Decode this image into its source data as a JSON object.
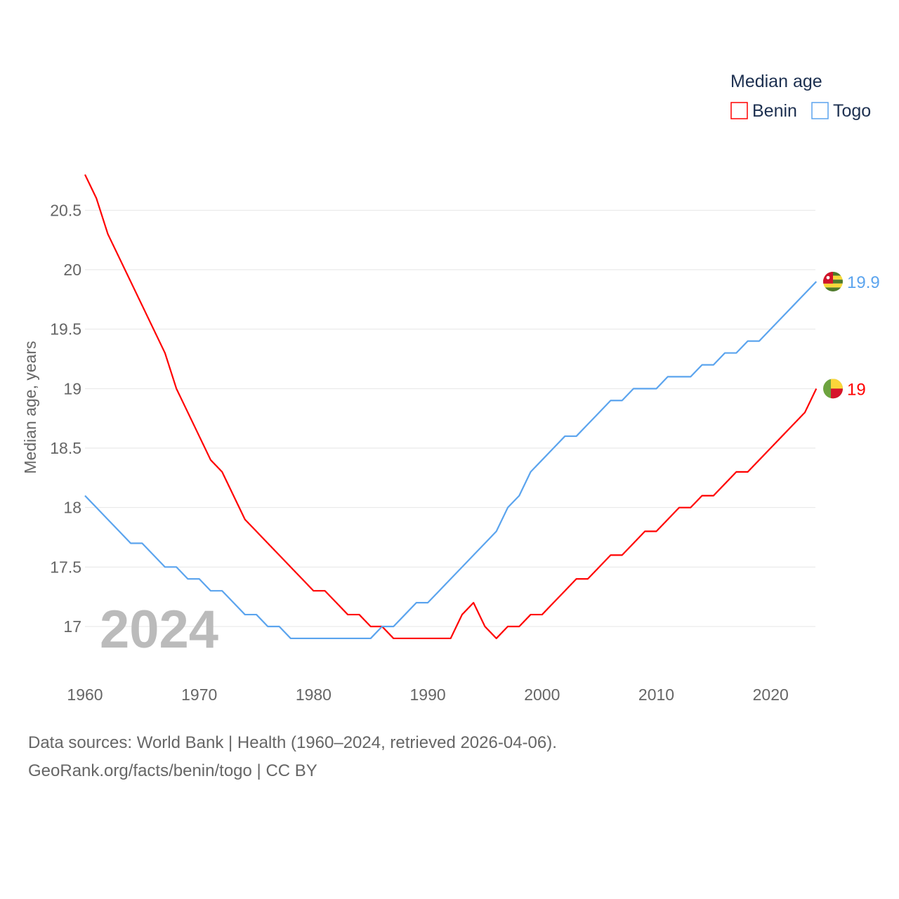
{
  "chart_data": {
    "type": "line",
    "title": "",
    "xlabel": "",
    "ylabel": "Median age, years",
    "xlim": [
      1960,
      2024
    ],
    "ylim": [
      16.65,
      20.85
    ],
    "grid": true,
    "legend": {
      "title": "Median age",
      "placement": "top-right"
    },
    "x_ticks": [
      "1960",
      "1970",
      "1980",
      "1990",
      "2000",
      "2010",
      "2020"
    ],
    "y_ticks": [
      "17",
      "17.5",
      "18",
      "18.5",
      "19",
      "19.5",
      "20",
      "20.5"
    ],
    "year_watermark": "2024",
    "x": [
      1960,
      1961,
      1962,
      1963,
      1964,
      1965,
      1966,
      1967,
      1968,
      1969,
      1970,
      1971,
      1972,
      1973,
      1974,
      1975,
      1976,
      1977,
      1978,
      1979,
      1980,
      1981,
      1982,
      1983,
      1984,
      1985,
      1986,
      1987,
      1988,
      1989,
      1990,
      1991,
      1992,
      1993,
      1994,
      1995,
      1996,
      1997,
      1998,
      1999,
      2000,
      2001,
      2002,
      2003,
      2004,
      2005,
      2006,
      2007,
      2008,
      2009,
      2010,
      2011,
      2012,
      2013,
      2014,
      2015,
      2016,
      2017,
      2018,
      2019,
      2020,
      2021,
      2022,
      2023,
      2024
    ],
    "series": [
      {
        "name": "Benin",
        "color": "#ff0000",
        "end_label": "19",
        "values": [
          20.8,
          20.6,
          20.3,
          20.1,
          19.9,
          19.7,
          19.5,
          19.3,
          19.0,
          18.8,
          18.6,
          18.4,
          18.3,
          18.1,
          17.9,
          17.8,
          17.7,
          17.6,
          17.5,
          17.4,
          17.3,
          17.3,
          17.2,
          17.1,
          17.1,
          17.0,
          17.0,
          16.9,
          16.9,
          16.9,
          16.9,
          16.9,
          16.9,
          17.1,
          17.2,
          17.0,
          16.9,
          17.0,
          17.0,
          17.1,
          17.1,
          17.2,
          17.3,
          17.4,
          17.4,
          17.5,
          17.6,
          17.6,
          17.7,
          17.8,
          17.8,
          17.9,
          18.0,
          18.0,
          18.1,
          18.1,
          18.2,
          18.3,
          18.3,
          18.4,
          18.5,
          18.6,
          18.7,
          18.8,
          19.0
        ]
      },
      {
        "name": "Togo",
        "color": "#5ba4ee",
        "end_label": "19.9",
        "values": [
          18.1,
          18.0,
          17.9,
          17.8,
          17.7,
          17.7,
          17.6,
          17.5,
          17.5,
          17.4,
          17.4,
          17.3,
          17.3,
          17.2,
          17.1,
          17.1,
          17.0,
          17.0,
          16.9,
          16.9,
          16.9,
          16.9,
          16.9,
          16.9,
          16.9,
          16.9,
          17.0,
          17.0,
          17.1,
          17.2,
          17.2,
          17.3,
          17.4,
          17.5,
          17.6,
          17.7,
          17.8,
          18.0,
          18.1,
          18.3,
          18.4,
          18.5,
          18.6,
          18.6,
          18.7,
          18.8,
          18.9,
          18.9,
          19.0,
          19.0,
          19.0,
          19.1,
          19.1,
          19.1,
          19.2,
          19.2,
          19.3,
          19.3,
          19.4,
          19.4,
          19.5,
          19.6,
          19.7,
          19.8,
          19.9
        ]
      }
    ]
  },
  "footer": {
    "line1": "Data sources: World Bank | Health (1960–2024, retrieved 2026-04-06).",
    "line2": "GeoRank.org/facts/benin/togo | CC BY"
  }
}
